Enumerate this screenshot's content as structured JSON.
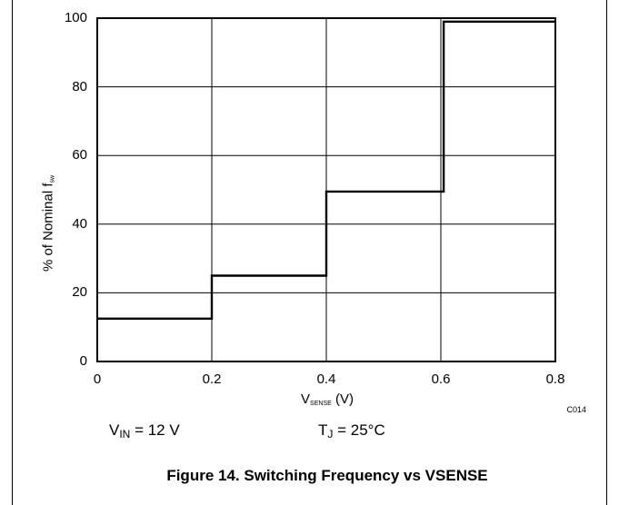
{
  "chart_data": {
    "type": "line",
    "title": "",
    "xlabel": {
      "main": "V",
      "sub": "SENSE",
      "unit": " (V)"
    },
    "ylabel": {
      "main": "% of Nominal f",
      "sub": "sw"
    },
    "x_ticks": [
      "0",
      "0.2",
      "0.4",
      "0.6",
      "0.8"
    ],
    "y_ticks": [
      "0",
      "20",
      "40",
      "60",
      "80",
      "100"
    ],
    "xlim": [
      0,
      0.8
    ],
    "ylim": [
      0,
      100
    ],
    "grid": true,
    "series": [
      {
        "x": [
          0,
          0.2,
          0.2,
          0.4,
          0.4,
          0.605,
          0.605,
          0.8
        ],
        "y": [
          12.5,
          12.5,
          25,
          25,
          49.5,
          49.5,
          99,
          99
        ]
      }
    ]
  },
  "figure_code": "C014",
  "conditions": {
    "vin": {
      "main": "V",
      "sub": "IN",
      "rest": " = 12 V"
    },
    "tj": {
      "main": "T",
      "sub": "J",
      "rest": " = 25°C"
    }
  },
  "caption": "Figure 14. Switching Frequency vs VSENSE"
}
